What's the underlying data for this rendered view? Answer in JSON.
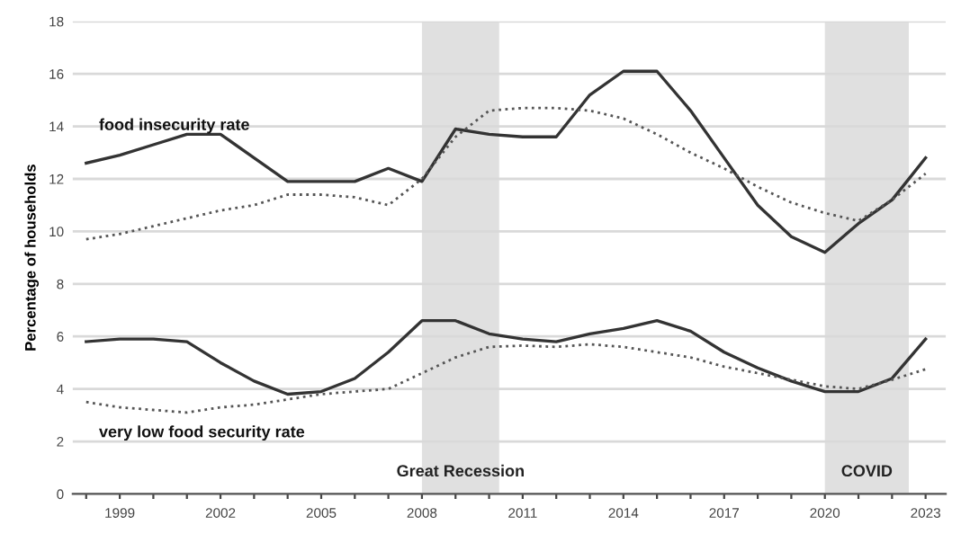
{
  "chart_data": {
    "type": "line",
    "ylabel": "Percentage of households",
    "x": [
      1998,
      1999,
      2000,
      2001,
      2002,
      2003,
      2004,
      2005,
      2006,
      2007,
      2008,
      2009,
      2010,
      2011,
      2012,
      2013,
      2014,
      2015,
      2016,
      2017,
      2018,
      2019,
      2020,
      2021,
      2022,
      2023
    ],
    "series": [
      {
        "name": "food insecurity rate",
        "color": "#333333",
        "line_style": "solid",
        "values": [
          12.6,
          12.9,
          13.3,
          13.7,
          13.7,
          12.8,
          11.9,
          11.9,
          11.9,
          12.4,
          11.9,
          13.9,
          13.7,
          13.6,
          13.6,
          15.2,
          16.1,
          16.1,
          14.6,
          12.8,
          11.0,
          9.8,
          9.2,
          10.3,
          11.2,
          12.8
        ]
      },
      {
        "color": "#555555",
        "line_style": "dotted",
        "values": [
          9.7,
          9.9,
          10.2,
          10.5,
          10.8,
          11.0,
          11.4,
          11.4,
          11.3,
          11.0,
          12.0,
          13.6,
          14.6,
          14.7,
          14.7,
          14.6,
          14.3,
          13.7,
          13.0,
          12.4,
          11.7,
          11.1,
          10.7,
          10.4,
          11.2,
          12.2
        ]
      },
      {
        "name": "very low food security rate",
        "color": "#333333",
        "line_style": "solid",
        "values": [
          5.8,
          5.9,
          5.9,
          5.8,
          5.0,
          4.3,
          3.8,
          3.9,
          4.4,
          5.4,
          6.6,
          6.6,
          6.1,
          5.9,
          5.8,
          6.1,
          6.3,
          6.6,
          6.2,
          5.4,
          4.8,
          4.3,
          3.9,
          3.9,
          4.4,
          5.9
        ]
      },
      {
        "color": "#555555",
        "line_style": "dotted",
        "values": [
          3.5,
          3.3,
          3.2,
          3.1,
          3.3,
          3.4,
          3.6,
          3.8,
          3.9,
          4.0,
          4.6,
          5.2,
          5.6,
          5.65,
          5.6,
          5.7,
          5.6,
          5.4,
          5.2,
          4.85,
          4.6,
          4.35,
          4.1,
          4.0,
          4.35,
          4.75
        ]
      }
    ],
    "bands": [
      {
        "axis": "x",
        "from": 2008,
        "to": 2010.3,
        "label": "Great Recession",
        "color": "#e0e0e0"
      },
      {
        "axis": "x",
        "from": 2020,
        "to": 2022.5,
        "label": "COVID",
        "color": "#e0e0e0"
      }
    ],
    "xlim": [
      1997.6,
      2023.6
    ],
    "xticks": [
      {
        "value": 1998,
        "label": null
      },
      1999,
      {
        "value": 2000,
        "label": null
      },
      {
        "value": 2001,
        "label": null
      },
      2002,
      {
        "value": 2003,
        "label": null
      },
      {
        "value": 2004,
        "label": null
      },
      2005,
      {
        "value": 2006,
        "label": null
      },
      {
        "value": 2007,
        "label": null
      },
      2008,
      {
        "value": 2009,
        "label": null
      },
      {
        "value": 2010,
        "label": null
      },
      2011,
      {
        "value": 2012,
        "label": null
      },
      {
        "value": 2013,
        "label": null
      },
      2014,
      {
        "value": 2015,
        "label": null
      },
      {
        "value": 2016,
        "label": null
      },
      2017,
      {
        "value": 2018,
        "label": null
      },
      {
        "value": 2019,
        "label": null
      },
      2020,
      {
        "value": 2021,
        "label": null
      },
      {
        "value": 2022,
        "label": null
      },
      2023
    ],
    "ylim": [
      0,
      18
    ],
    "yticks": [
      0,
      2,
      4,
      6,
      8,
      10,
      12,
      14,
      16,
      18
    ],
    "grid": "y",
    "legend": false,
    "marker": "none"
  }
}
